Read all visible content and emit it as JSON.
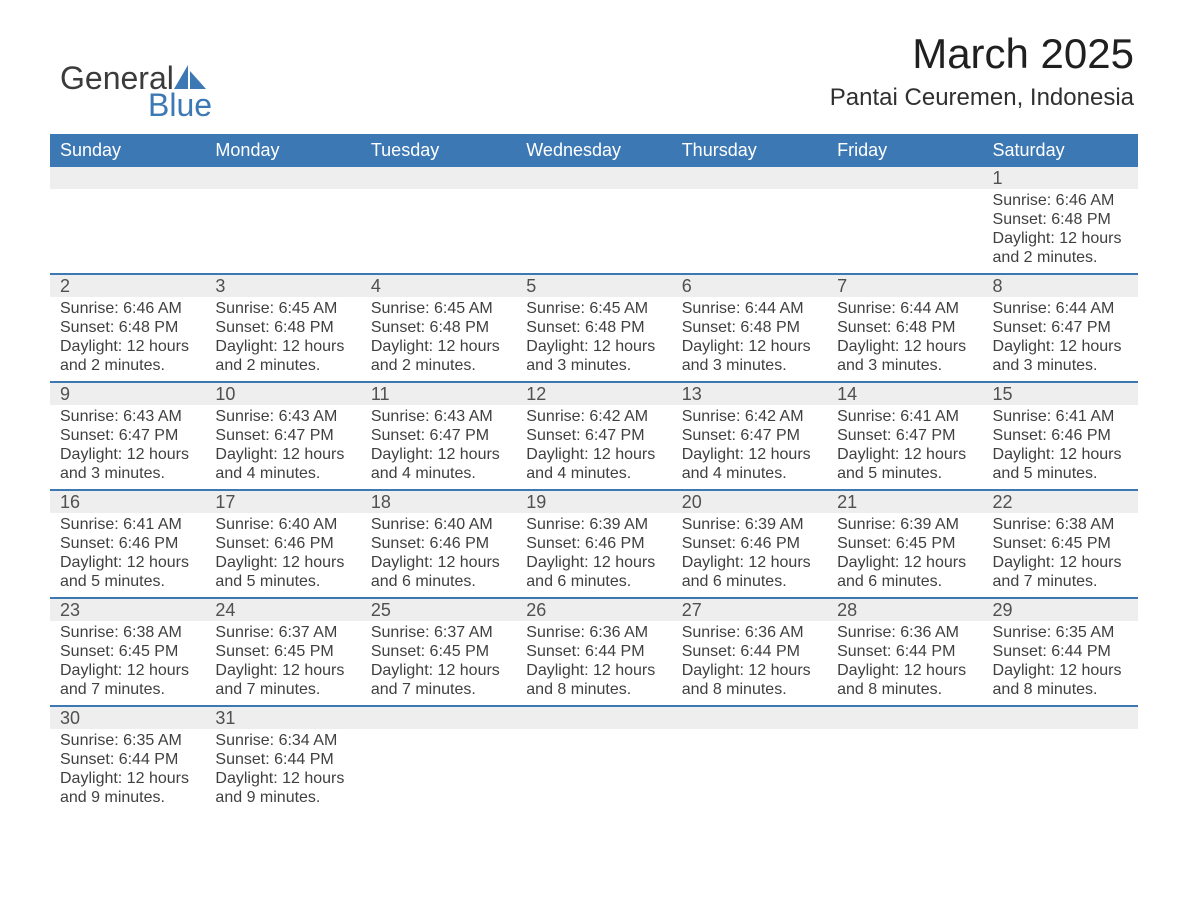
{
  "logo": {
    "general": "General",
    "blue": "Blue",
    "accent_color": "#3c78b4"
  },
  "title": {
    "month": "March 2025",
    "location": "Pantai Ceuremen, Indonesia"
  },
  "colors": {
    "header_bg": "#3c78b4",
    "header_text": "#ffffff",
    "daynum_bg": "#eeeeee",
    "row_border": "#3c78b4",
    "text": "#404040"
  },
  "weekdays": [
    "Sunday",
    "Monday",
    "Tuesday",
    "Wednesday",
    "Thursday",
    "Friday",
    "Saturday"
  ],
  "weeks": [
    [
      null,
      null,
      null,
      null,
      null,
      null,
      {
        "n": "1",
        "sr": "Sunrise: 6:46 AM",
        "ss": "Sunset: 6:48 PM",
        "d1": "Daylight: 12 hours",
        "d2": "and 2 minutes."
      }
    ],
    [
      {
        "n": "2",
        "sr": "Sunrise: 6:46 AM",
        "ss": "Sunset: 6:48 PM",
        "d1": "Daylight: 12 hours",
        "d2": "and 2 minutes."
      },
      {
        "n": "3",
        "sr": "Sunrise: 6:45 AM",
        "ss": "Sunset: 6:48 PM",
        "d1": "Daylight: 12 hours",
        "d2": "and 2 minutes."
      },
      {
        "n": "4",
        "sr": "Sunrise: 6:45 AM",
        "ss": "Sunset: 6:48 PM",
        "d1": "Daylight: 12 hours",
        "d2": "and 2 minutes."
      },
      {
        "n": "5",
        "sr": "Sunrise: 6:45 AM",
        "ss": "Sunset: 6:48 PM",
        "d1": "Daylight: 12 hours",
        "d2": "and 3 minutes."
      },
      {
        "n": "6",
        "sr": "Sunrise: 6:44 AM",
        "ss": "Sunset: 6:48 PM",
        "d1": "Daylight: 12 hours",
        "d2": "and 3 minutes."
      },
      {
        "n": "7",
        "sr": "Sunrise: 6:44 AM",
        "ss": "Sunset: 6:48 PM",
        "d1": "Daylight: 12 hours",
        "d2": "and 3 minutes."
      },
      {
        "n": "8",
        "sr": "Sunrise: 6:44 AM",
        "ss": "Sunset: 6:47 PM",
        "d1": "Daylight: 12 hours",
        "d2": "and 3 minutes."
      }
    ],
    [
      {
        "n": "9",
        "sr": "Sunrise: 6:43 AM",
        "ss": "Sunset: 6:47 PM",
        "d1": "Daylight: 12 hours",
        "d2": "and 3 minutes."
      },
      {
        "n": "10",
        "sr": "Sunrise: 6:43 AM",
        "ss": "Sunset: 6:47 PM",
        "d1": "Daylight: 12 hours",
        "d2": "and 4 minutes."
      },
      {
        "n": "11",
        "sr": "Sunrise: 6:43 AM",
        "ss": "Sunset: 6:47 PM",
        "d1": "Daylight: 12 hours",
        "d2": "and 4 minutes."
      },
      {
        "n": "12",
        "sr": "Sunrise: 6:42 AM",
        "ss": "Sunset: 6:47 PM",
        "d1": "Daylight: 12 hours",
        "d2": "and 4 minutes."
      },
      {
        "n": "13",
        "sr": "Sunrise: 6:42 AM",
        "ss": "Sunset: 6:47 PM",
        "d1": "Daylight: 12 hours",
        "d2": "and 4 minutes."
      },
      {
        "n": "14",
        "sr": "Sunrise: 6:41 AM",
        "ss": "Sunset: 6:47 PM",
        "d1": "Daylight: 12 hours",
        "d2": "and 5 minutes."
      },
      {
        "n": "15",
        "sr": "Sunrise: 6:41 AM",
        "ss": "Sunset: 6:46 PM",
        "d1": "Daylight: 12 hours",
        "d2": "and 5 minutes."
      }
    ],
    [
      {
        "n": "16",
        "sr": "Sunrise: 6:41 AM",
        "ss": "Sunset: 6:46 PM",
        "d1": "Daylight: 12 hours",
        "d2": "and 5 minutes."
      },
      {
        "n": "17",
        "sr": "Sunrise: 6:40 AM",
        "ss": "Sunset: 6:46 PM",
        "d1": "Daylight: 12 hours",
        "d2": "and 5 minutes."
      },
      {
        "n": "18",
        "sr": "Sunrise: 6:40 AM",
        "ss": "Sunset: 6:46 PM",
        "d1": "Daylight: 12 hours",
        "d2": "and 6 minutes."
      },
      {
        "n": "19",
        "sr": "Sunrise: 6:39 AM",
        "ss": "Sunset: 6:46 PM",
        "d1": "Daylight: 12 hours",
        "d2": "and 6 minutes."
      },
      {
        "n": "20",
        "sr": "Sunrise: 6:39 AM",
        "ss": "Sunset: 6:46 PM",
        "d1": "Daylight: 12 hours",
        "d2": "and 6 minutes."
      },
      {
        "n": "21",
        "sr": "Sunrise: 6:39 AM",
        "ss": "Sunset: 6:45 PM",
        "d1": "Daylight: 12 hours",
        "d2": "and 6 minutes."
      },
      {
        "n": "22",
        "sr": "Sunrise: 6:38 AM",
        "ss": "Sunset: 6:45 PM",
        "d1": "Daylight: 12 hours",
        "d2": "and 7 minutes."
      }
    ],
    [
      {
        "n": "23",
        "sr": "Sunrise: 6:38 AM",
        "ss": "Sunset: 6:45 PM",
        "d1": "Daylight: 12 hours",
        "d2": "and 7 minutes."
      },
      {
        "n": "24",
        "sr": "Sunrise: 6:37 AM",
        "ss": "Sunset: 6:45 PM",
        "d1": "Daylight: 12 hours",
        "d2": "and 7 minutes."
      },
      {
        "n": "25",
        "sr": "Sunrise: 6:37 AM",
        "ss": "Sunset: 6:45 PM",
        "d1": "Daylight: 12 hours",
        "d2": "and 7 minutes."
      },
      {
        "n": "26",
        "sr": "Sunrise: 6:36 AM",
        "ss": "Sunset: 6:44 PM",
        "d1": "Daylight: 12 hours",
        "d2": "and 8 minutes."
      },
      {
        "n": "27",
        "sr": "Sunrise: 6:36 AM",
        "ss": "Sunset: 6:44 PM",
        "d1": "Daylight: 12 hours",
        "d2": "and 8 minutes."
      },
      {
        "n": "28",
        "sr": "Sunrise: 6:36 AM",
        "ss": "Sunset: 6:44 PM",
        "d1": "Daylight: 12 hours",
        "d2": "and 8 minutes."
      },
      {
        "n": "29",
        "sr": "Sunrise: 6:35 AM",
        "ss": "Sunset: 6:44 PM",
        "d1": "Daylight: 12 hours",
        "d2": "and 8 minutes."
      }
    ],
    [
      {
        "n": "30",
        "sr": "Sunrise: 6:35 AM",
        "ss": "Sunset: 6:44 PM",
        "d1": "Daylight: 12 hours",
        "d2": "and 9 minutes."
      },
      {
        "n": "31",
        "sr": "Sunrise: 6:34 AM",
        "ss": "Sunset: 6:44 PM",
        "d1": "Daylight: 12 hours",
        "d2": "and 9 minutes."
      },
      null,
      null,
      null,
      null,
      null
    ]
  ]
}
